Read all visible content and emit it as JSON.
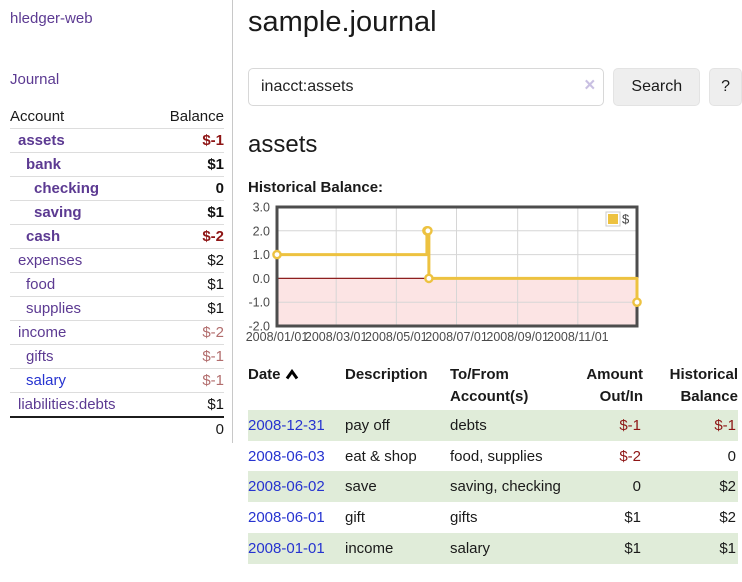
{
  "app": {
    "brand": "hledger-web",
    "nav_journal": "Journal"
  },
  "icons": {
    "clear": "×",
    "sort_ascending": "chevron-up"
  },
  "colors": {
    "text": "#1a1a1a",
    "purple": "#5c3a92",
    "blue": "#2633d0",
    "neg": "#8e1515",
    "neg-light": "#b26d6d",
    "row-green": "#e0ecd9",
    "row-sep": "#dddddd",
    "divider": "#c8c8c8",
    "btn-bg": "#eeeeee",
    "btn-border": "#e3e3e3",
    "input-border": "#d8d8d8",
    "clear-x": "#c9c0e2",
    "chart-yellow": "#edc240",
    "chart-pink": "#fce4e4",
    "zero-line": "#8e1f1f",
    "grid-line": "#d6d6d6",
    "chart-border": "#4d4d4d",
    "tick-text": "#4a4a4a"
  },
  "sidebar": {
    "header": {
      "account": "Account",
      "balance": "Balance"
    },
    "accounts": [
      {
        "name": "assets",
        "balance": "$-1",
        "depth": 1,
        "bold": true,
        "balance_class": "bold-neg"
      },
      {
        "name": "bank",
        "balance": "$1",
        "depth": 2,
        "bold": true,
        "balance_class": "bold"
      },
      {
        "name": "checking",
        "balance": "0",
        "depth": 3,
        "bold": true,
        "balance_class": "bold"
      },
      {
        "name": "saving",
        "balance": "$1",
        "depth": 3,
        "bold": true,
        "balance_class": "bold"
      },
      {
        "name": "cash",
        "balance": "$-2",
        "depth": 2,
        "bold": true,
        "balance_class": "bold-neg"
      },
      {
        "name": "expenses",
        "balance": "$2",
        "depth": 1,
        "bold": false,
        "balance_class": "plain"
      },
      {
        "name": "food",
        "balance": "$1",
        "depth": 2,
        "bold": false,
        "balance_class": "plain"
      },
      {
        "name": "supplies",
        "balance": "$1",
        "depth": 2,
        "bold": false,
        "balance_class": "plain"
      },
      {
        "name": "income",
        "balance": "$-2",
        "depth": 1,
        "bold": false,
        "balance_class": "light-neg"
      },
      {
        "name": "gifts",
        "balance": "$-1",
        "depth": 2,
        "bold": false,
        "balance_class": "light-neg"
      },
      {
        "name": "salary",
        "balance": "$-1",
        "depth": 2,
        "bold": false,
        "balance_class": "light-neg",
        "link_color": "blue"
      },
      {
        "name": "liabilities:debts",
        "balance": "$1",
        "depth": 1,
        "bold": false,
        "balance_class": "plain"
      }
    ],
    "total": "0"
  },
  "main": {
    "title": "sample.journal",
    "search": {
      "value": "inacct:assets",
      "button_label": "Search",
      "help_label": "?"
    },
    "heading": "assets",
    "chart_label": "Historical Balance:"
  },
  "chart_data": {
    "type": "line",
    "step": true,
    "title": "Historical Balance:",
    "series": [
      {
        "name": "$",
        "color": "#edc240",
        "points": [
          [
            "2008-01-01",
            1
          ],
          [
            "2008-06-01",
            2
          ],
          [
            "2008-06-02",
            2
          ],
          [
            "2008-06-03",
            0
          ],
          [
            "2008-12-31",
            -1
          ]
        ]
      }
    ],
    "x_range": [
      "2008-01-01",
      "2008-12-31"
    ],
    "x_ticks": [
      {
        "date": "2008-01-01",
        "label": "2008/01/01"
      },
      {
        "date": "2008-03-01",
        "label": "2008/03/01"
      },
      {
        "date": "2008-05-01",
        "label": "2008/05/01"
      },
      {
        "date": "2008-07-01",
        "label": "2008/07/01"
      },
      {
        "date": "2008-09-01",
        "label": "2008/09/01"
      },
      {
        "date": "2008-11-01",
        "label": "2008/11/01"
      }
    ],
    "y_ticks": [
      {
        "value": 3,
        "label": "3.0"
      },
      {
        "value": 2,
        "label": "2.0"
      },
      {
        "value": 1,
        "label": "1.0"
      },
      {
        "value": 0,
        "label": "0.0"
      },
      {
        "value": -1,
        "label": "-1.0"
      },
      {
        "value": -2,
        "label": "-2.0"
      }
    ],
    "ylim": [
      -2,
      3
    ],
    "grid": true,
    "negative_region": true,
    "legend": {
      "label": "$",
      "position": "top-right"
    }
  },
  "register": {
    "headers": [
      {
        "key": "date",
        "line1": "Date",
        "line2": "",
        "align": "left",
        "sortable": true
      },
      {
        "key": "description",
        "line1": "Description",
        "line2": "",
        "align": "left",
        "sortable": false
      },
      {
        "key": "accounts",
        "line1": "To/From",
        "line2": "Account(s)",
        "align": "left",
        "sortable": false
      },
      {
        "key": "amount",
        "line1": "Amount",
        "line2": "Out/In",
        "align": "right",
        "sortable": false
      },
      {
        "key": "balance",
        "line1": "Historical",
        "line2": "Balance",
        "align": "right",
        "sortable": false
      }
    ],
    "rows": [
      {
        "date": "2008-12-31",
        "description": "pay off",
        "accounts": "debts",
        "amount": "$-1",
        "balance": "$-1",
        "amount_negative": true,
        "balance_negative": true
      },
      {
        "date": "2008-06-03",
        "description": "eat & shop",
        "accounts": "food, supplies",
        "amount": "$-2",
        "balance": "0",
        "amount_negative": true,
        "balance_negative": false
      },
      {
        "date": "2008-06-02",
        "description": "save",
        "accounts": "saving, checking",
        "amount": "0",
        "balance": "$2",
        "amount_negative": false,
        "balance_negative": false
      },
      {
        "date": "2008-06-01",
        "description": "gift",
        "accounts": "gifts",
        "amount": "$1",
        "balance": "$2",
        "amount_negative": false,
        "balance_negative": false
      },
      {
        "date": "2008-01-01",
        "description": "income",
        "accounts": "salary",
        "amount": "$1",
        "balance": "$1",
        "amount_negative": false,
        "balance_negative": false
      }
    ]
  }
}
